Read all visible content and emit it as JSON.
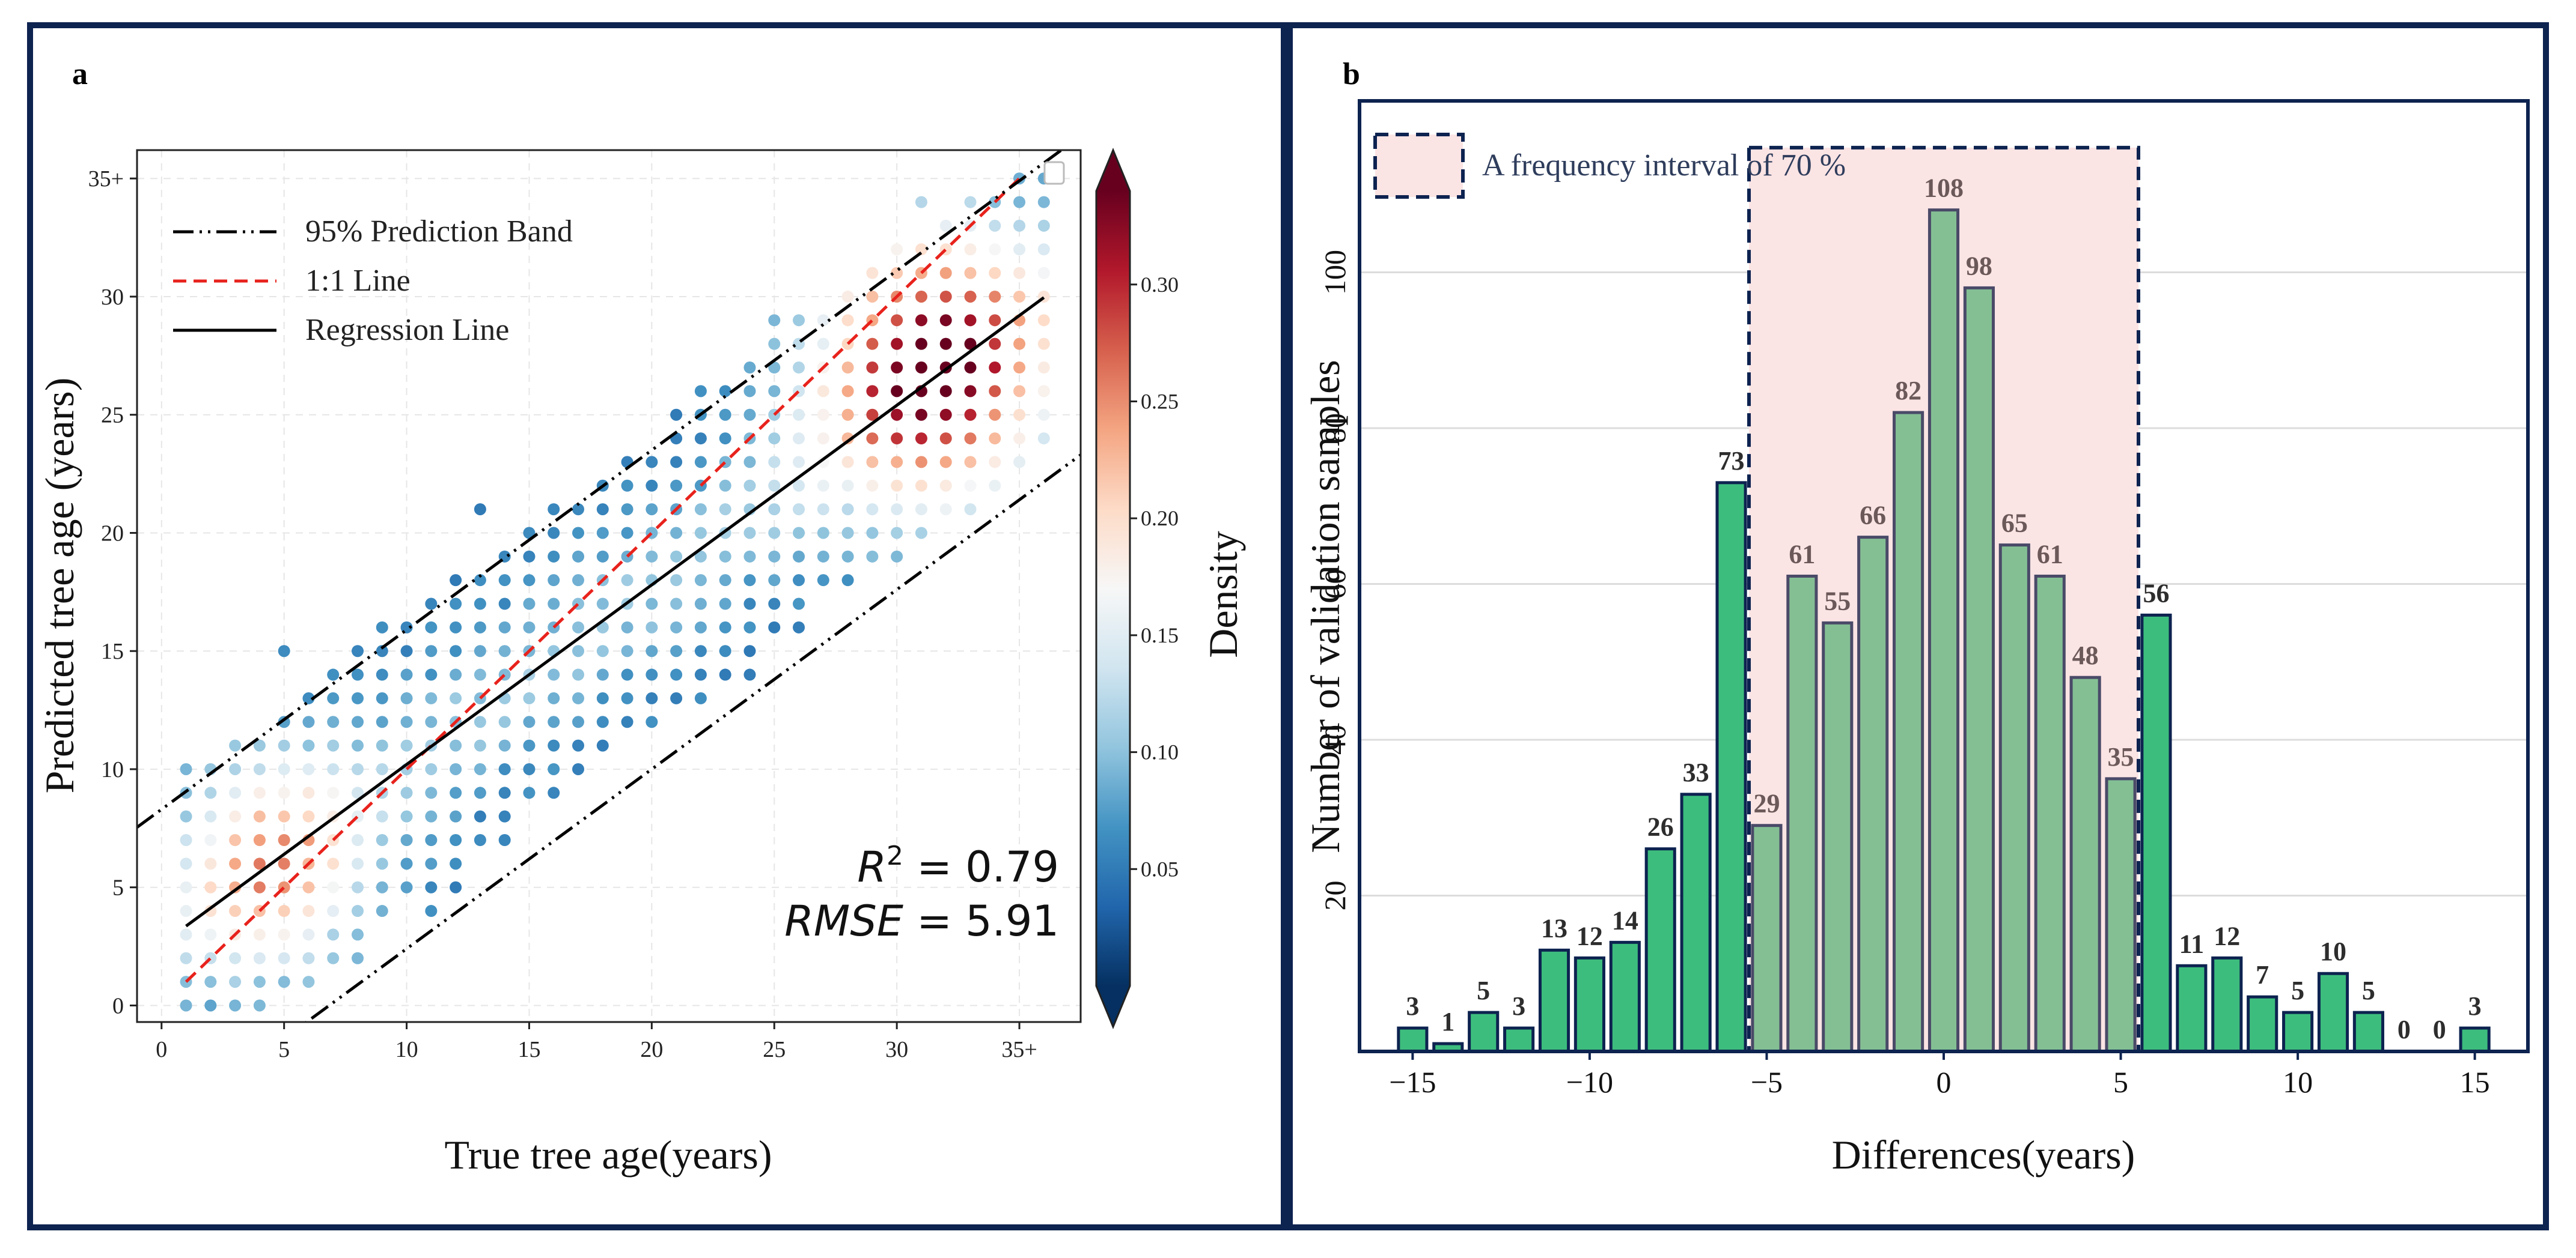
{
  "chart_data": [
    {
      "panel_label": "a",
      "type": "scatter",
      "xlabel": "True tree age(years)",
      "ylabel": "Predicted tree age (years)",
      "xlim": [
        -1,
        37.5
      ],
      "ylim": [
        -0.7,
        36.2
      ],
      "x_ticks": [
        0,
        5,
        10,
        15,
        20,
        25,
        30,
        35
      ],
      "x_tick_labels": [
        "0",
        "5",
        "10",
        "15",
        "20",
        "25",
        "30",
        "35+"
      ],
      "y_ticks": [
        0,
        5,
        10,
        15,
        20,
        25,
        30,
        35
      ],
      "y_tick_labels": [
        "0",
        "5",
        "10",
        "15",
        "20",
        "25",
        "30",
        "35+"
      ],
      "grid": true,
      "legend": {
        "placement": "top-left",
        "entries": [
          "95% Prediction Band",
          "1:1 Line",
          "Regression Line"
        ]
      },
      "lines": {
        "one_to_one": {
          "x": [
            1,
            35
          ],
          "y": [
            1,
            35
          ]
        },
        "regression": {
          "slope": 0.76,
          "intercept": 2.6,
          "x": [
            1,
            36
          ]
        },
        "prediction_band_upper": {
          "slope": 0.76,
          "intercept": 8.3
        },
        "prediction_band_lower": {
          "slope": 0.76,
          "intercept": -5.2
        }
      },
      "stats": {
        "r2_label": "R",
        "r2_sup": "2",
        "r2_value": " = 0.79",
        "rmse_label": "RMSE",
        "rmse_value": " = 5.91"
      },
      "colorbar": {
        "label": "Density",
        "range": [
          0.0,
          0.34
        ],
        "ticks": [
          0.05,
          0.1,
          0.15,
          0.2,
          0.25,
          0.3
        ],
        "tick_labels": [
          "0.05",
          "0.10",
          "0.15",
          "0.20",
          "0.25",
          "0.30"
        ],
        "colormap": "RdBu_r"
      },
      "points_note": "Scatter points lie on an integer grid of (true, predicted) ages; each point coloured by kernel density."
    },
    {
      "panel_label": "b",
      "type": "bar",
      "xlabel": "Differences(years)",
      "ylabel": "Number of validation samples",
      "xlim": [
        -16.5,
        16.5
      ],
      "ylim": [
        0,
        122
      ],
      "x_ticks": [
        -15,
        -10,
        -5,
        0,
        5,
        10,
        15
      ],
      "x_tick_labels": [
        "−15",
        "−10",
        "−5",
        "0",
        "5",
        "10",
        "15"
      ],
      "y_ticks": [
        20,
        40,
        60,
        80,
        100
      ],
      "y_tick_labels": [
        "20",
        "40",
        "60",
        "80",
        "100"
      ],
      "grid": "y",
      "x": [
        -15,
        -14,
        -13,
        -12,
        -11,
        -10,
        -9,
        -8,
        -7,
        -6,
        -5,
        -4,
        -3,
        -2,
        -1,
        0,
        1,
        2,
        3,
        4,
        5,
        6,
        7,
        8,
        9,
        10,
        11,
        12,
        13,
        14,
        15
      ],
      "values": [
        3,
        1,
        5,
        3,
        13,
        12,
        14,
        26,
        33,
        73,
        29,
        61,
        55,
        66,
        82,
        108,
        98,
        65,
        61,
        48,
        35,
        56,
        11,
        12,
        7,
        5,
        10,
        5,
        0,
        0,
        3
      ],
      "highlight": {
        "label": "A frequency interval of 70 %",
        "x_range": [
          -5.5,
          5.5
        ],
        "top": 116
      },
      "colors": {
        "outside": "#3dbd7d",
        "inside": "#84bf94",
        "inside_label": "#6b5858",
        "outside_label": "#2d2d2d",
        "shade": "#fbe4e4",
        "frame": "#0d2350"
      }
    }
  ]
}
